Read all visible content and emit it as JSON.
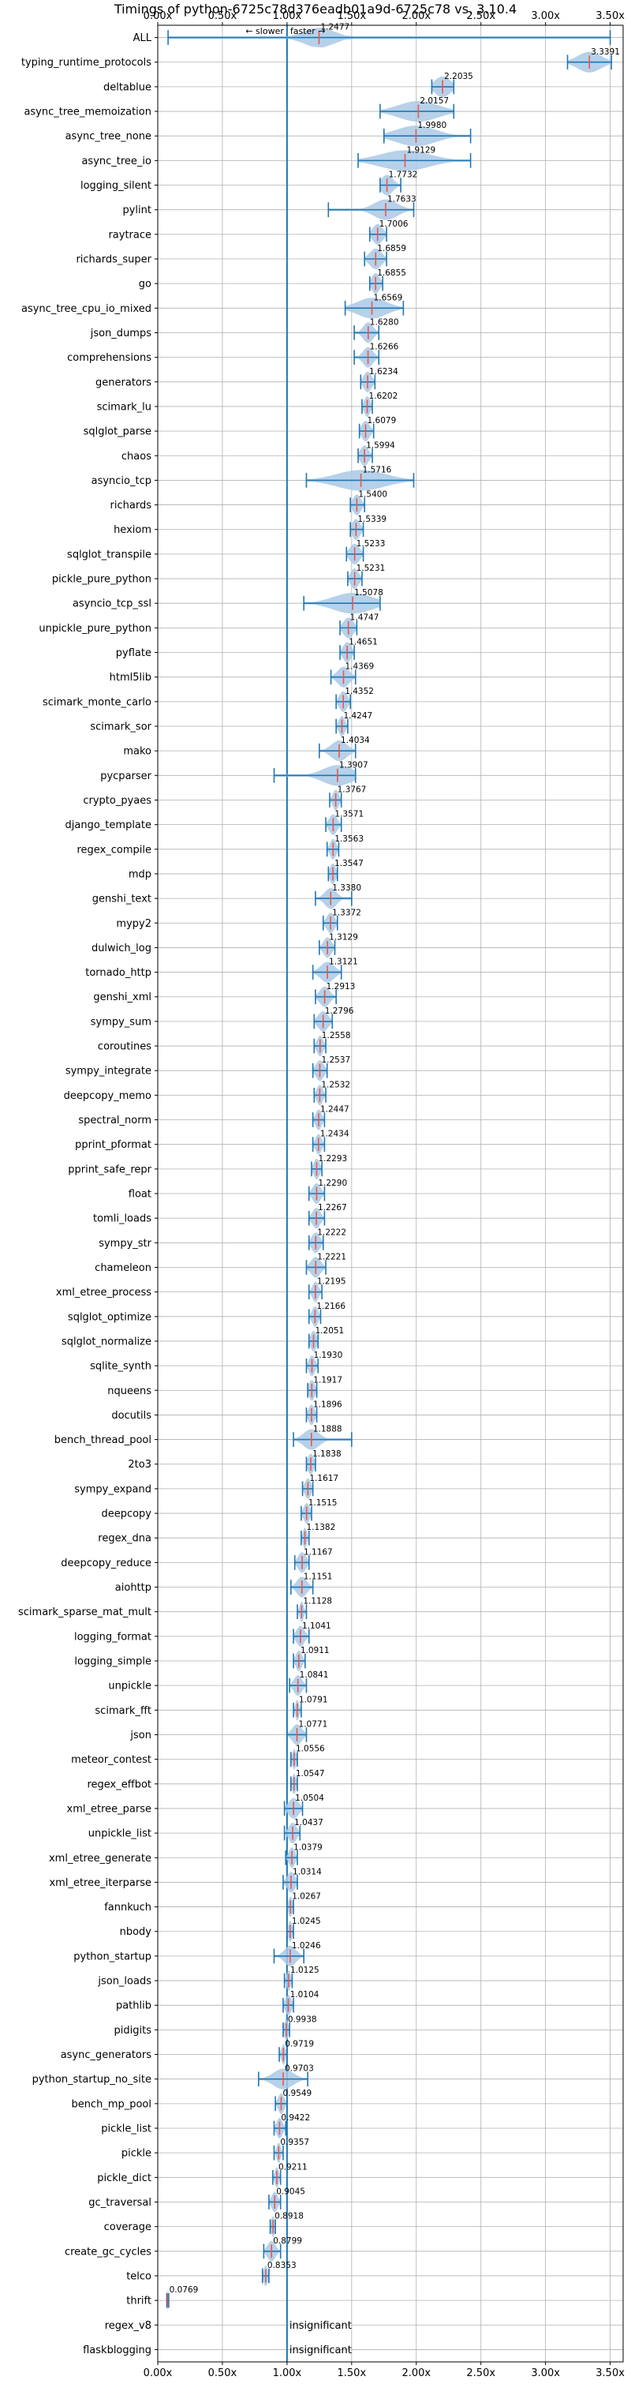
{
  "chart_data": {
    "type": "violin",
    "title": "Timings of python-6725c78d376eadb01a9d-6725c78 vs. 3.10.4",
    "xlim": [
      0,
      3.6
    ],
    "xticks": [
      "0.00x",
      "0.50x",
      "1.00x",
      "1.50x",
      "2.00x",
      "2.50x",
      "3.00x",
      "3.50x"
    ],
    "xtick_values": [
      0,
      0.5,
      1.0,
      1.5,
      2.0,
      2.5,
      3.0,
      3.5
    ],
    "reference_line": 1.0,
    "annotation_slower": "← slower",
    "annotation_faster": "faster →",
    "grid": true,
    "benchmarks": [
      {
        "name": "ALL",
        "value": "1.2477",
        "mean": 1.2477,
        "min": 0.08,
        "max": 3.5,
        "spread": 0.15
      },
      {
        "name": "typing_runtime_protocols",
        "value": "3.3391",
        "mean": 3.3391,
        "min": 3.17,
        "max": 3.51,
        "spread": 0.12
      },
      {
        "name": "deltablue",
        "value": "2.2035",
        "mean": 2.2035,
        "min": 2.12,
        "max": 2.29,
        "spread": 0.08
      },
      {
        "name": "async_tree_memoization",
        "value": "2.0157",
        "mean": 2.0157,
        "min": 1.72,
        "max": 2.29,
        "spread": 0.2
      },
      {
        "name": "async_tree_none",
        "value": "1.9980",
        "mean": 1.998,
        "min": 1.75,
        "max": 2.42,
        "spread": 0.2
      },
      {
        "name": "async_tree_io",
        "value": "1.9129",
        "mean": 1.9129,
        "min": 1.55,
        "max": 2.42,
        "spread": 0.25
      },
      {
        "name": "logging_silent",
        "value": "1.7732",
        "mean": 1.7732,
        "min": 1.72,
        "max": 1.88,
        "spread": 0.06
      },
      {
        "name": "pylint",
        "value": "1.7633",
        "mean": 1.7633,
        "min": 1.32,
        "max": 1.98,
        "spread": 0.12
      },
      {
        "name": "raytrace",
        "value": "1.7006",
        "mean": 1.7006,
        "min": 1.64,
        "max": 1.77,
        "spread": 0.05
      },
      {
        "name": "richards_super",
        "value": "1.6859",
        "mean": 1.6859,
        "min": 1.6,
        "max": 1.77,
        "spread": 0.06
      },
      {
        "name": "go",
        "value": "1.6855",
        "mean": 1.6855,
        "min": 1.64,
        "max": 1.74,
        "spread": 0.04
      },
      {
        "name": "async_tree_cpu_io_mixed",
        "value": "1.6569",
        "mean": 1.6569,
        "min": 1.45,
        "max": 1.9,
        "spread": 0.15
      },
      {
        "name": "json_dumps",
        "value": "1.6280",
        "mean": 1.628,
        "min": 1.52,
        "max": 1.71,
        "spread": 0.05
      },
      {
        "name": "comprehensions",
        "value": "1.6266",
        "mean": 1.6266,
        "min": 1.52,
        "max": 1.71,
        "spread": 0.05
      },
      {
        "name": "generators",
        "value": "1.6234",
        "mean": 1.6234,
        "min": 1.57,
        "max": 1.68,
        "spread": 0.04
      },
      {
        "name": "scimark_lu",
        "value": "1.6202",
        "mean": 1.6202,
        "min": 1.58,
        "max": 1.66,
        "spread": 0.03
      },
      {
        "name": "sqlglot_parse",
        "value": "1.6079",
        "mean": 1.6079,
        "min": 1.56,
        "max": 1.67,
        "spread": 0.04
      },
      {
        "name": "chaos",
        "value": "1.5994",
        "mean": 1.5994,
        "min": 1.55,
        "max": 1.66,
        "spread": 0.04
      },
      {
        "name": "asyncio_tcp",
        "value": "1.5716",
        "mean": 1.5716,
        "min": 1.15,
        "max": 1.98,
        "spread": 0.25
      },
      {
        "name": "richards",
        "value": "1.5400",
        "mean": 1.54,
        "min": 1.49,
        "max": 1.6,
        "spread": 0.04
      },
      {
        "name": "hexiom",
        "value": "1.5339",
        "mean": 1.5339,
        "min": 1.49,
        "max": 1.59,
        "spread": 0.04
      },
      {
        "name": "sqlglot_transpile",
        "value": "1.5233",
        "mean": 1.5233,
        "min": 1.46,
        "max": 1.59,
        "spread": 0.05
      },
      {
        "name": "pickle_pure_python",
        "value": "1.5231",
        "mean": 1.5231,
        "min": 1.47,
        "max": 1.58,
        "spread": 0.04
      },
      {
        "name": "asyncio_tcp_ssl",
        "value": "1.5078",
        "mean": 1.5078,
        "min": 1.13,
        "max": 1.72,
        "spread": 0.2
      },
      {
        "name": "unpickle_pure_python",
        "value": "1.4747",
        "mean": 1.4747,
        "min": 1.41,
        "max": 1.54,
        "spread": 0.05
      },
      {
        "name": "pyflate",
        "value": "1.4651",
        "mean": 1.4651,
        "min": 1.41,
        "max": 1.52,
        "spread": 0.04
      },
      {
        "name": "html5lib",
        "value": "1.4369",
        "mean": 1.4369,
        "min": 1.34,
        "max": 1.53,
        "spread": 0.06
      },
      {
        "name": "scimark_monte_carlo",
        "value": "1.4352",
        "mean": 1.4352,
        "min": 1.38,
        "max": 1.49,
        "spread": 0.04
      },
      {
        "name": "scimark_sor",
        "value": "1.4247",
        "mean": 1.4247,
        "min": 1.38,
        "max": 1.47,
        "spread": 0.03
      },
      {
        "name": "mako",
        "value": "1.4034",
        "mean": 1.4034,
        "min": 1.25,
        "max": 1.53,
        "spread": 0.08
      },
      {
        "name": "pycparser",
        "value": "1.3907",
        "mean": 1.3907,
        "min": 0.9,
        "max": 1.53,
        "spread": 0.15
      },
      {
        "name": "crypto_pyaes",
        "value": "1.3767",
        "mean": 1.3767,
        "min": 1.33,
        "max": 1.42,
        "spread": 0.03
      },
      {
        "name": "django_template",
        "value": "1.3571",
        "mean": 1.3571,
        "min": 1.3,
        "max": 1.42,
        "spread": 0.04
      },
      {
        "name": "regex_compile",
        "value": "1.3563",
        "mean": 1.3563,
        "min": 1.31,
        "max": 1.4,
        "spread": 0.03
      },
      {
        "name": "mdp",
        "value": "1.3547",
        "mean": 1.3547,
        "min": 1.32,
        "max": 1.39,
        "spread": 0.03
      },
      {
        "name": "genshi_text",
        "value": "1.3380",
        "mean": 1.338,
        "min": 1.22,
        "max": 1.5,
        "spread": 0.06
      },
      {
        "name": "mypy2",
        "value": "1.3372",
        "mean": 1.3372,
        "min": 1.28,
        "max": 1.39,
        "spread": 0.04
      },
      {
        "name": "dulwich_log",
        "value": "1.3129",
        "mean": 1.3129,
        "min": 1.25,
        "max": 1.37,
        "spread": 0.04
      },
      {
        "name": "tornado_http",
        "value": "1.3121",
        "mean": 1.3121,
        "min": 1.2,
        "max": 1.42,
        "spread": 0.07
      },
      {
        "name": "genshi_xml",
        "value": "1.2913",
        "mean": 1.2913,
        "min": 1.22,
        "max": 1.38,
        "spread": 0.05
      },
      {
        "name": "sympy_sum",
        "value": "1.2796",
        "mean": 1.2796,
        "min": 1.21,
        "max": 1.35,
        "spread": 0.05
      },
      {
        "name": "coroutines",
        "value": "1.2558",
        "mean": 1.2558,
        "min": 1.21,
        "max": 1.3,
        "spread": 0.03
      },
      {
        "name": "sympy_integrate",
        "value": "1.2537",
        "mean": 1.2537,
        "min": 1.2,
        "max": 1.31,
        "spread": 0.04
      },
      {
        "name": "deepcopy_memo",
        "value": "1.2532",
        "mean": 1.2532,
        "min": 1.21,
        "max": 1.3,
        "spread": 0.03
      },
      {
        "name": "spectral_norm",
        "value": "1.2447",
        "mean": 1.2447,
        "min": 1.2,
        "max": 1.29,
        "spread": 0.03
      },
      {
        "name": "pprint_pformat",
        "value": "1.2434",
        "mean": 1.2434,
        "min": 1.2,
        "max": 1.29,
        "spread": 0.03
      },
      {
        "name": "pprint_safe_repr",
        "value": "1.2293",
        "mean": 1.2293,
        "min": 1.19,
        "max": 1.27,
        "spread": 0.03
      },
      {
        "name": "float",
        "value": "1.2290",
        "mean": 1.229,
        "min": 1.17,
        "max": 1.29,
        "spread": 0.04
      },
      {
        "name": "tomli_loads",
        "value": "1.2267",
        "mean": 1.2267,
        "min": 1.17,
        "max": 1.29,
        "spread": 0.04
      },
      {
        "name": "sympy_str",
        "value": "1.2222",
        "mean": 1.2222,
        "min": 1.17,
        "max": 1.28,
        "spread": 0.04
      },
      {
        "name": "chameleon",
        "value": "1.2221",
        "mean": 1.2221,
        "min": 1.15,
        "max": 1.3,
        "spread": 0.05
      },
      {
        "name": "xml_etree_process",
        "value": "1.2195",
        "mean": 1.2195,
        "min": 1.17,
        "max": 1.27,
        "spread": 0.03
      },
      {
        "name": "sqlglot_optimize",
        "value": "1.2166",
        "mean": 1.2166,
        "min": 1.17,
        "max": 1.26,
        "spread": 0.03
      },
      {
        "name": "sqlglot_normalize",
        "value": "1.2051",
        "mean": 1.2051,
        "min": 1.17,
        "max": 1.24,
        "spread": 0.03
      },
      {
        "name": "sqlite_synth",
        "value": "1.1930",
        "mean": 1.193,
        "min": 1.15,
        "max": 1.24,
        "spread": 0.03
      },
      {
        "name": "nqueens",
        "value": "1.1917",
        "mean": 1.1917,
        "min": 1.16,
        "max": 1.23,
        "spread": 0.03
      },
      {
        "name": "docutils",
        "value": "1.1896",
        "mean": 1.1896,
        "min": 1.15,
        "max": 1.23,
        "spread": 0.03
      },
      {
        "name": "bench_thread_pool",
        "value": "1.1888",
        "mean": 1.1888,
        "min": 1.05,
        "max": 1.5,
        "spread": 0.08
      },
      {
        "name": "2to3",
        "value": "1.1838",
        "mean": 1.1838,
        "min": 1.15,
        "max": 1.22,
        "spread": 0.03
      },
      {
        "name": "sympy_expand",
        "value": "1.1617",
        "mean": 1.1617,
        "min": 1.12,
        "max": 1.2,
        "spread": 0.03
      },
      {
        "name": "deepcopy",
        "value": "1.1515",
        "mean": 1.1515,
        "min": 1.11,
        "max": 1.19,
        "spread": 0.03
      },
      {
        "name": "regex_dna",
        "value": "1.1382",
        "mean": 1.1382,
        "min": 1.11,
        "max": 1.17,
        "spread": 0.02
      },
      {
        "name": "deepcopy_reduce",
        "value": "1.1167",
        "mean": 1.1167,
        "min": 1.06,
        "max": 1.17,
        "spread": 0.04
      },
      {
        "name": "aiohttp",
        "value": "1.1151",
        "mean": 1.1151,
        "min": 1.03,
        "max": 1.2,
        "spread": 0.05
      },
      {
        "name": "scimark_sparse_mat_mult",
        "value": "1.1128",
        "mean": 1.1128,
        "min": 1.08,
        "max": 1.15,
        "spread": 0.02
      },
      {
        "name": "logging_format",
        "value": "1.1041",
        "mean": 1.1041,
        "min": 1.05,
        "max": 1.17,
        "spread": 0.04
      },
      {
        "name": "logging_simple",
        "value": "1.0911",
        "mean": 1.0911,
        "min": 1.05,
        "max": 1.14,
        "spread": 0.03
      },
      {
        "name": "unpickle",
        "value": "1.0841",
        "mean": 1.0841,
        "min": 1.02,
        "max": 1.15,
        "spread": 0.04
      },
      {
        "name": "scimark_fft",
        "value": "1.0791",
        "mean": 1.0791,
        "min": 1.05,
        "max": 1.11,
        "spread": 0.02
      },
      {
        "name": "json",
        "value": "1.0771",
        "mean": 1.0771,
        "min": 1.0,
        "max": 1.15,
        "spread": 0.05
      },
      {
        "name": "meteor_contest",
        "value": "1.0556",
        "mean": 1.0556,
        "min": 1.03,
        "max": 1.08,
        "spread": 0.02
      },
      {
        "name": "regex_effbot",
        "value": "1.0547",
        "mean": 1.0547,
        "min": 1.03,
        "max": 1.08,
        "spread": 0.02
      },
      {
        "name": "xml_etree_parse",
        "value": "1.0504",
        "mean": 1.0504,
        "min": 0.98,
        "max": 1.12,
        "spread": 0.05
      },
      {
        "name": "unpickle_list",
        "value": "1.0437",
        "mean": 1.0437,
        "min": 0.98,
        "max": 1.1,
        "spread": 0.04
      },
      {
        "name": "xml_etree_generate",
        "value": "1.0379",
        "mean": 1.0379,
        "min": 0.99,
        "max": 1.08,
        "spread": 0.03
      },
      {
        "name": "xml_etree_iterparse",
        "value": "1.0314",
        "mean": 1.0314,
        "min": 0.97,
        "max": 1.08,
        "spread": 0.04
      },
      {
        "name": "fannkuch",
        "value": "1.0267",
        "mean": 1.0267,
        "min": 1.0,
        "max": 1.05,
        "spread": 0.02
      },
      {
        "name": "nbody",
        "value": "1.0245",
        "mean": 1.0245,
        "min": 1.0,
        "max": 1.05,
        "spread": 0.02
      },
      {
        "name": "python_startup",
        "value": "1.0246",
        "mean": 1.0246,
        "min": 0.9,
        "max": 1.13,
        "spread": 0.06
      },
      {
        "name": "json_loads",
        "value": "1.0125",
        "mean": 1.0125,
        "min": 0.98,
        "max": 1.04,
        "spread": 0.02
      },
      {
        "name": "pathlib",
        "value": "1.0104",
        "mean": 1.0104,
        "min": 0.97,
        "max": 1.05,
        "spread": 0.03
      },
      {
        "name": "pidigits",
        "value": "0.9938",
        "mean": 0.9938,
        "min": 0.97,
        "max": 1.02,
        "spread": 0.02
      },
      {
        "name": "async_generators",
        "value": "0.9719",
        "mean": 0.9719,
        "min": 0.94,
        "max": 1.0,
        "spread": 0.02
      },
      {
        "name": "python_startup_no_site",
        "value": "0.9703",
        "mean": 0.9703,
        "min": 0.78,
        "max": 1.16,
        "spread": 0.1
      },
      {
        "name": "bench_mp_pool",
        "value": "0.9549",
        "mean": 0.9549,
        "min": 0.91,
        "max": 1.0,
        "spread": 0.03
      },
      {
        "name": "pickle_list",
        "value": "0.9422",
        "mean": 0.9422,
        "min": 0.9,
        "max": 0.99,
        "spread": 0.03
      },
      {
        "name": "pickle",
        "value": "0.9357",
        "mean": 0.9357,
        "min": 0.9,
        "max": 0.97,
        "spread": 0.02
      },
      {
        "name": "pickle_dict",
        "value": "0.9211",
        "mean": 0.9211,
        "min": 0.89,
        "max": 0.95,
        "spread": 0.02
      },
      {
        "name": "gc_traversal",
        "value": "0.9045",
        "mean": 0.9045,
        "min": 0.86,
        "max": 0.95,
        "spread": 0.03
      },
      {
        "name": "coverage",
        "value": "0.8918",
        "mean": 0.8918,
        "min": 0.87,
        "max": 0.91,
        "spread": 0.02
      },
      {
        "name": "create_gc_cycles",
        "value": "0.8799",
        "mean": 0.8799,
        "min": 0.82,
        "max": 0.95,
        "spread": 0.04
      },
      {
        "name": "telco",
        "value": "0.8353",
        "mean": 0.8353,
        "min": 0.81,
        "max": 0.86,
        "spread": 0.02
      },
      {
        "name": "thrift",
        "value": "0.0769",
        "mean": 0.0769,
        "min": 0.07,
        "max": 0.085,
        "spread": 0.005
      },
      {
        "name": "regex_v8",
        "value": "insignificant",
        "mean": null,
        "min": null,
        "max": null,
        "spread": null
      },
      {
        "name": "flaskblogging",
        "value": "insignificant",
        "mean": null,
        "min": null,
        "max": null,
        "spread": null
      }
    ]
  },
  "colors": {
    "violin_fill": "#a9c9e5",
    "line": "#1f77b4",
    "mean_marker": "#e8564e",
    "grid": "#b0b0b0",
    "reference": "#1f77b4"
  }
}
